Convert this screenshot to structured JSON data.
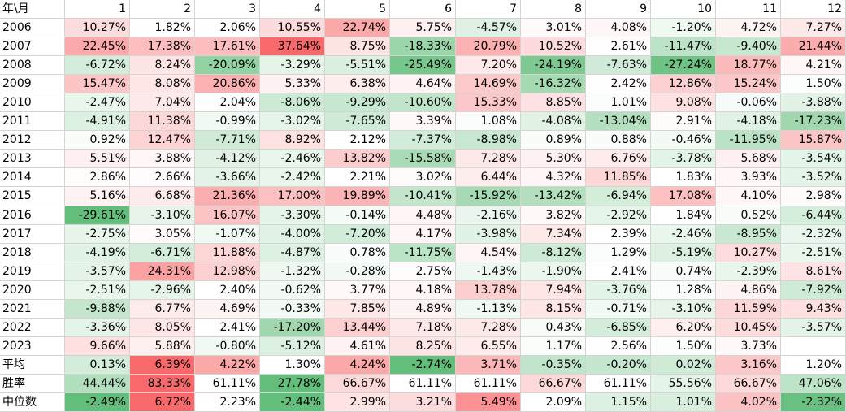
{
  "table": {
    "header": [
      "年\\月",
      "1",
      "2",
      "3",
      "4",
      "5",
      "6",
      "7",
      "8",
      "9",
      "10",
      "11",
      "12"
    ],
    "rows": [
      [
        "2006",
        "10.27%",
        "1.82%",
        "2.06%",
        "10.55%",
        "22.74%",
        "5.75%",
        "-4.57%",
        "3.01%",
        "4.08%",
        "-1.20%",
        "4.72%",
        "7.27%"
      ],
      [
        "2007",
        "22.45%",
        "17.38%",
        "17.61%",
        "37.64%",
        "8.75%",
        "-18.33%",
        "20.79%",
        "10.52%",
        "2.61%",
        "-11.47%",
        "-9.40%",
        "21.44%"
      ],
      [
        "2008",
        "-6.72%",
        "8.24%",
        "-20.09%",
        "-3.29%",
        "-5.51%",
        "-25.49%",
        "7.20%",
        "-24.19%",
        "-7.63%",
        "-27.24%",
        "18.77%",
        "4.21%"
      ],
      [
        "2009",
        "15.47%",
        "8.08%",
        "20.86%",
        "5.33%",
        "6.38%",
        "4.64%",
        "14.69%",
        "-16.32%",
        "2.42%",
        "12.86%",
        "15.24%",
        "1.50%"
      ],
      [
        "2010",
        "-2.47%",
        "7.04%",
        "2.04%",
        "-8.06%",
        "-9.29%",
        "-10.60%",
        "15.33%",
        "8.85%",
        "1.01%",
        "9.08%",
        "-0.06%",
        "-3.88%"
      ],
      [
        "2011",
        "-4.91%",
        "11.38%",
        "-0.99%",
        "-3.02%",
        "-7.65%",
        "3.39%",
        "1.08%",
        "-4.08%",
        "-13.04%",
        "2.91%",
        "-4.18%",
        "-17.23%"
      ],
      [
        "2012",
        "0.92%",
        "12.47%",
        "-7.71%",
        "8.92%",
        "2.12%",
        "-7.37%",
        "-8.98%",
        "0.89%",
        "0.88%",
        "-0.46%",
        "-11.95%",
        "15.87%"
      ],
      [
        "2013",
        "5.51%",
        "3.88%",
        "-4.12%",
        "-2.46%",
        "13.82%",
        "-15.58%",
        "7.28%",
        "5.30%",
        "6.76%",
        "-3.78%",
        "5.68%",
        "-3.54%"
      ],
      [
        "2014",
        "2.86%",
        "2.66%",
        "-3.66%",
        "-2.42%",
        "2.21%",
        "3.02%",
        "6.44%",
        "4.32%",
        "11.85%",
        "1.83%",
        "3.93%",
        "-3.52%"
      ],
      [
        "2015",
        "5.16%",
        "6.68%",
        "21.36%",
        "17.00%",
        "19.89%",
        "-10.41%",
        "-15.92%",
        "-13.42%",
        "-6.94%",
        "17.08%",
        "4.10%",
        "2.98%"
      ],
      [
        "2016",
        "-29.61%",
        "-3.10%",
        "16.07%",
        "-3.30%",
        "-0.14%",
        "4.48%",
        "-2.16%",
        "3.82%",
        "-2.92%",
        "1.84%",
        "0.52%",
        "-6.44%"
      ],
      [
        "2017",
        "-2.75%",
        "3.05%",
        "-1.07%",
        "-4.00%",
        "-7.20%",
        "4.17%",
        "-3.98%",
        "7.34%",
        "2.39%",
        "-2.46%",
        "-8.95%",
        "-2.32%"
      ],
      [
        "2018",
        "-4.19%",
        "-6.71%",
        "11.88%",
        "-4.87%",
        "0.78%",
        "-11.75%",
        "4.54%",
        "-8.12%",
        "1.29%",
        "-5.19%",
        "10.27%",
        "-2.51%"
      ],
      [
        "2019",
        "-3.57%",
        "24.31%",
        "12.98%",
        "-1.32%",
        "-0.28%",
        "2.75%",
        "-1.43%",
        "-1.90%",
        "2.41%",
        "0.74%",
        "-2.39%",
        "8.61%"
      ],
      [
        "2020",
        "-2.51%",
        "-2.96%",
        "2.40%",
        "-0.62%",
        "3.77%",
        "4.18%",
        "13.78%",
        "7.94%",
        "-3.76%",
        "1.28%",
        "4.86%",
        "-7.92%"
      ],
      [
        "2021",
        "-9.88%",
        "6.77%",
        "4.69%",
        "-0.33%",
        "7.85%",
        "4.89%",
        "-1.13%",
        "8.15%",
        "-0.71%",
        "-3.10%",
        "11.59%",
        "9.43%"
      ],
      [
        "2022",
        "-3.36%",
        "8.05%",
        "2.41%",
        "-17.20%",
        "13.44%",
        "7.18%",
        "7.28%",
        "0.43%",
        "-6.85%",
        "6.20%",
        "10.45%",
        "-3.57%"
      ],
      [
        "2023",
        "9.66%",
        "5.88%",
        "-0.80%",
        "-5.12%",
        "4.61%",
        "8.25%",
        "6.55%",
        "1.17%",
        "2.56%",
        "1.50%",
        "3.73%",
        null
      ],
      [
        "平均",
        "0.13%",
        "6.39%",
        "4.22%",
        "1.30%",
        "4.24%",
        "-2.74%",
        "3.71%",
        "-0.35%",
        "-0.20%",
        "0.02%",
        "3.16%",
        "1.20%"
      ],
      [
        "胜率",
        "44.44%",
        "83.33%",
        "61.11%",
        "27.78%",
        "66.67%",
        "61.11%",
        "61.11%",
        "66.67%",
        "61.11%",
        "55.56%",
        "66.67%",
        "47.06%"
      ],
      [
        "中位数",
        "-2.49%",
        "6.72%",
        "2.23%",
        "-2.44%",
        "2.99%",
        "3.21%",
        "5.49%",
        "2.09%",
        "1.15%",
        "1.01%",
        "4.02%",
        "-2.32%"
      ]
    ]
  }
}
